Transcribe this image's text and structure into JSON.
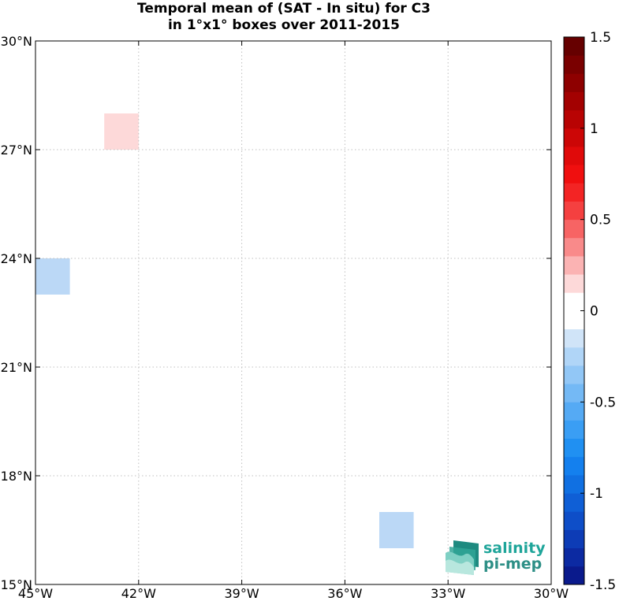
{
  "title": {
    "line1": "Temporal mean of (SAT - In situ) for C3",
    "line2": "in 1°x1° boxes over 2011-2015"
  },
  "map": {
    "lon_range": [
      -45,
      -30
    ],
    "lat_range": [
      15,
      30
    ],
    "x_ticks": [
      {
        "lon": -45,
        "label": "45°W"
      },
      {
        "lon": -42,
        "label": "42°W"
      },
      {
        "lon": -39,
        "label": "39°W"
      },
      {
        "lon": -36,
        "label": "36°W"
      },
      {
        "lon": -33,
        "label": "33°W"
      },
      {
        "lon": -30,
        "label": "30°W"
      }
    ],
    "y_ticks": [
      {
        "lat": 30,
        "label": "30°N"
      },
      {
        "lat": 27,
        "label": "27°N"
      },
      {
        "lat": 24,
        "label": "24°N"
      },
      {
        "lat": 21,
        "label": "21°N"
      },
      {
        "lat": 18,
        "label": "18°N"
      },
      {
        "lat": 15,
        "label": "15°N"
      }
    ],
    "grid": "dotted",
    "cells": [
      {
        "lon": -43,
        "lat": 27,
        "value": 0.15,
        "color": "#fdd9d9"
      },
      {
        "lon": -45,
        "lat": 23,
        "value": -0.3,
        "color": "#bbd8f6"
      },
      {
        "lon": -35,
        "lat": 16,
        "value": -0.3,
        "color": "#bbd8f6"
      }
    ]
  },
  "colorbar": {
    "range": [
      -1.5,
      1.5
    ],
    "ticks": [
      {
        "value": 1.5,
        "label": "1.5"
      },
      {
        "value": 1,
        "label": "1"
      },
      {
        "value": 0.5,
        "label": "0.5"
      },
      {
        "value": 0,
        "label": "0"
      },
      {
        "value": -0.5,
        "label": "-0.5"
      },
      {
        "value": -1,
        "label": "-1"
      },
      {
        "value": -1.5,
        "label": "-1.5"
      }
    ],
    "colors": [
      "#0a1a8c",
      "#0c2aa2",
      "#0d3cb6",
      "#0e4ec8",
      "#0f5fd6",
      "#1070e2",
      "#1480ee",
      "#2090f2",
      "#3a9ef4",
      "#55aaf4",
      "#74b9f5",
      "#92c7f6",
      "#b0d5f7",
      "#d0e4f8",
      "#ffffff",
      "#ffffff",
      "#fdd9d9",
      "#fbb3b3",
      "#f98a8a",
      "#f76464",
      "#f54040",
      "#f32424",
      "#f00f0f",
      "#e00a0a",
      "#cc0606",
      "#b80303",
      "#a30101",
      "#8e0000",
      "#7a0000",
      "#660000"
    ]
  },
  "logo": {
    "line1": "salinity",
    "line2": "pi-mep"
  }
}
